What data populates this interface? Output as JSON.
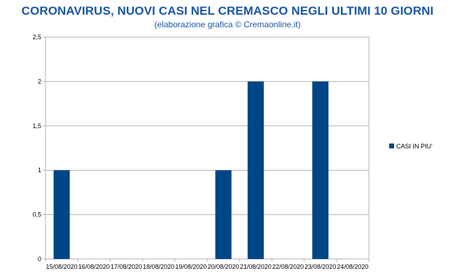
{
  "header": {
    "title": "CORONAVIRUS, NUOVI CASI NEL CREMASCO NEGLI ULTIMI 10 GIORNI",
    "subtitle": "(elaborazione grafica © Cremaonline.it)"
  },
  "chart_data": {
    "type": "bar",
    "title": "CORONAVIRUS, NUOVI CASI NEL CREMASCO NEGLI ULTIMI 10 GIORNI",
    "subtitle": "(elaborazione grafica © Cremaonline.it)",
    "categories": [
      "15/08/2020",
      "16/08/2020",
      "17/08/2020",
      "18/08/2020",
      "19/08/2020",
      "20/08/2020",
      "21/08/2020",
      "22/08/2020",
      "23/08/2020",
      "24/08/2020"
    ],
    "series": [
      {
        "name": "CASI IN PIU'",
        "values": [
          1,
          0,
          0,
          0,
          0,
          1,
          2,
          0,
          2,
          0
        ],
        "color": "#004586"
      }
    ],
    "yticks": [
      0,
      0.5,
      1,
      1.5,
      2,
      2.5
    ],
    "ytick_labels": [
      "0",
      "0,5",
      "1",
      "1,5",
      "2",
      "2,5"
    ],
    "ylim": [
      0,
      2.5
    ],
    "xlabel": "",
    "ylabel": "",
    "grid": true,
    "legend_position": "right"
  }
}
